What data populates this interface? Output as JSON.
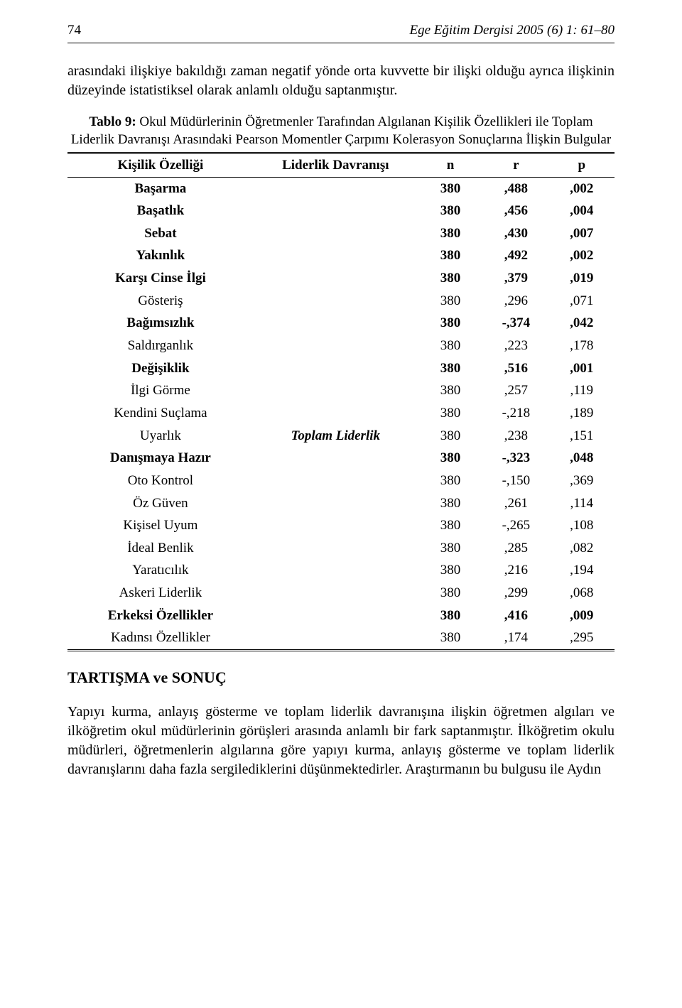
{
  "header": {
    "page_num": "74",
    "journal": "Ege Eğitim Dergisi 2005 (6) 1: 61–80"
  },
  "intro_paragraph": "arasındaki ilişkiye bakıldığı zaman negatif yönde orta kuvvette bir ilişki olduğu ayrıca ilişkinin düzeyinde istatistiksel olarak anlamlı olduğu saptanmıştır.",
  "table": {
    "caption_lead": "Tablo 9:",
    "caption_rest": " Okul Müdürlerinin Öğretmenler Tarafından Algılanan Kişilik Özellikleri ile Toplam Liderlik Davranışı Arasındaki Pearson Momentler Çarpımı Kolerasyon Sonuçlarına İlişkin Bulgular",
    "columns": {
      "trait": "Kişilik Özelliği",
      "behavior": "Liderlik Davranışı",
      "n": "n",
      "r": "r",
      "p": "p"
    },
    "behavior_label": "Toplam Liderlik",
    "behavior_label_row_index": 11,
    "bold_row_indices": [
      0,
      1,
      2,
      3,
      4,
      6,
      8,
      12,
      19
    ],
    "rows": [
      {
        "trait": "Başarma",
        "n": "380",
        "r": ",488",
        "p": ",002"
      },
      {
        "trait": "Başatlık",
        "n": "380",
        "r": ",456",
        "p": ",004"
      },
      {
        "trait": "Sebat",
        "n": "380",
        "r": ",430",
        "p": ",007"
      },
      {
        "trait": "Yakınlık",
        "n": "380",
        "r": ",492",
        "p": ",002"
      },
      {
        "trait": "Karşı Cinse İlgi",
        "n": "380",
        "r": ",379",
        "p": ",019"
      },
      {
        "trait": "Gösteriş",
        "n": "380",
        "r": ",296",
        "p": ",071"
      },
      {
        "trait": "Bağımsızlık",
        "n": "380",
        "r": "-,374",
        "p": ",042"
      },
      {
        "trait": "Saldırganlık",
        "n": "380",
        "r": ",223",
        "p": ",178"
      },
      {
        "trait": "Değişiklik",
        "n": "380",
        "r": ",516",
        "p": ",001"
      },
      {
        "trait": "İlgi Görme",
        "n": "380",
        "r": ",257",
        "p": ",119"
      },
      {
        "trait": "Kendini Suçlama",
        "n": "380",
        "r": "-,218",
        "p": ",189"
      },
      {
        "trait": "Uyarlık",
        "n": "380",
        "r": ",238",
        "p": ",151"
      },
      {
        "trait": "Danışmaya Hazır",
        "n": "380",
        "r": "-,323",
        "p": ",048"
      },
      {
        "trait": "Oto Kontrol",
        "n": "380",
        "r": "-,150",
        "p": ",369"
      },
      {
        "trait": "Öz Güven",
        "n": "380",
        "r": ",261",
        "p": ",114"
      },
      {
        "trait": "Kişisel Uyum",
        "n": "380",
        "r": "-,265",
        "p": ",108"
      },
      {
        "trait": "İdeal Benlik",
        "n": "380",
        "r": ",285",
        "p": ",082"
      },
      {
        "trait": "Yaratıcılık",
        "n": "380",
        "r": ",216",
        "p": ",194"
      },
      {
        "trait": "Askeri Liderlik",
        "n": "380",
        "r": ",299",
        "p": ",068"
      },
      {
        "trait": "Erkeksi Özellikler",
        "n": "380",
        "r": ",416",
        "p": ",009"
      },
      {
        "trait": "Kadınsı Özellikler",
        "n": "380",
        "r": ",174",
        "p": ",295"
      }
    ]
  },
  "section_heading": "TARTIŞMA ve SONUÇ",
  "body_paragraph": "Yapıyı kurma, anlayış gösterme ve toplam liderlik davranışına ilişkin öğretmen algıları ve ilköğretim okul müdürlerinin görüşleri arasında anlamlı bir fark saptanmıştır. İlköğretim okulu müdürleri, öğretmenlerin algılarına göre yapıyı kurma, anlayış gösterme ve toplam liderlik davranışlarını daha fazla sergilediklerini düşünmektedirler. Araştırmanın bu bulgusu ile Aydın"
}
